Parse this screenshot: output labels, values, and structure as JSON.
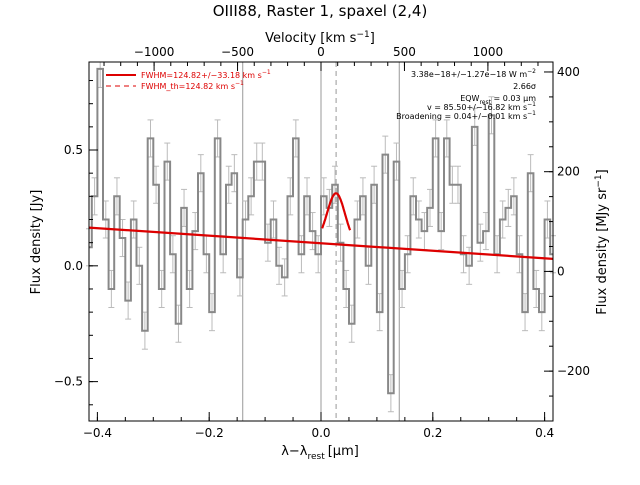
{
  "chart_data": {
    "type": "line",
    "title": "OIII88, Raster 1, spaxel (2,4)",
    "xlabel": "λ−λ",
    "xlabel_sub": "rest",
    "xlabel_unit": "[μm]",
    "ylabel": "Flux density [Jy]",
    "ylabel_right": "Flux density [MJy sr",
    "ylabel_right_sup": "−1",
    "ylabel_right_close": "]",
    "top_xlabel": "Velocity [km s",
    "top_xlabel_sup": "−1",
    "top_xlabel_close": "]",
    "xlim": [
      -0.415,
      0.415
    ],
    "ylim": [
      -0.67,
      0.88
    ],
    "top_xlim": [
      -1390,
      1390
    ],
    "right_ylim": [
      -300,
      420
    ],
    "x_ticks": [
      -0.4,
      -0.2,
      0.0,
      0.2,
      0.4
    ],
    "x_tick_labels": [
      "−0.4",
      "−0.2",
      "0.0",
      "0.2",
      "0.4"
    ],
    "y_ticks": [
      -0.5,
      0.0,
      0.5
    ],
    "y_tick_labels": [
      "−0.5",
      "0.0",
      "0.5"
    ],
    "top_ticks": [
      -1000,
      -500,
      0,
      500,
      1000
    ],
    "top_tick_labels": [
      "−1000",
      "−500",
      "0",
      "500",
      "1000"
    ],
    "right_ticks": [
      -200,
      0,
      200,
      400
    ],
    "right_tick_labels": [
      "−200",
      "0",
      "200",
      "400"
    ],
    "vlines_solid": [
      -0.14,
      0.0,
      0.14
    ],
    "vline_dashed": 0.027,
    "grid": false,
    "legend_position": "top-left",
    "series": [
      {
        "name": "spectrum",
        "style": "step",
        "color": "#888888",
        "x": [
          -0.415,
          -0.405,
          -0.395,
          -0.385,
          -0.375,
          -0.365,
          -0.355,
          -0.345,
          -0.335,
          -0.325,
          -0.315,
          -0.305,
          -0.295,
          -0.285,
          -0.275,
          -0.265,
          -0.255,
          -0.245,
          -0.235,
          -0.225,
          -0.215,
          -0.205,
          -0.195,
          -0.185,
          -0.175,
          -0.165,
          -0.155,
          -0.145,
          -0.135,
          -0.125,
          -0.115,
          -0.105,
          -0.095,
          -0.085,
          -0.075,
          -0.065,
          -0.055,
          -0.045,
          -0.035,
          -0.025,
          -0.015,
          -0.005,
          0.005,
          0.015,
          0.025,
          0.035,
          0.045,
          0.055,
          0.065,
          0.075,
          0.085,
          0.095,
          0.105,
          0.115,
          0.125,
          0.135,
          0.145,
          0.155,
          0.165,
          0.175,
          0.185,
          0.195,
          0.205,
          0.215,
          0.225,
          0.235,
          0.245,
          0.255,
          0.265,
          0.275,
          0.285,
          0.295,
          0.305,
          0.315,
          0.325,
          0.335,
          0.345,
          0.355,
          0.365,
          0.375,
          0.385,
          0.395,
          0.405,
          0.415
        ],
        "y": [
          0.08,
          0.3,
          0.85,
          0.2,
          -0.1,
          0.3,
          0.12,
          -0.15,
          0.2,
          0.0,
          -0.28,
          0.55,
          0.35,
          -0.1,
          0.45,
          0.05,
          -0.25,
          0.25,
          -0.1,
          0.15,
          0.4,
          0.05,
          -0.2,
          0.55,
          0.05,
          0.35,
          0.4,
          -0.05,
          0.2,
          0.3,
          0.45,
          0.45,
          0.1,
          0.2,
          0.0,
          -0.05,
          0.3,
          0.55,
          0.05,
          0.3,
          0.15,
          0.05,
          0.3,
          0.25,
          0.35,
          0.1,
          -0.1,
          -0.25,
          0.2,
          0.3,
          0.0,
          0.35,
          -0.2,
          0.48,
          -0.55,
          0.45,
          -0.1,
          0.05,
          0.3,
          0.2,
          0.15,
          0.25,
          0.55,
          0.15,
          0.55,
          0.35,
          0.35,
          0.05,
          0.0,
          0.6,
          0.1,
          0.15,
          0.65,
          0.05,
          0.2,
          0.25,
          0.3,
          0.05,
          -0.2,
          0.4,
          -0.1,
          -0.2,
          0.2,
          0.05
        ],
        "errors": [
          0.08,
          0.08,
          0.08,
          0.08,
          0.08,
          0.08,
          0.08,
          0.08,
          0.08,
          0.08,
          0.08,
          0.08,
          0.08,
          0.08,
          0.08,
          0.08,
          0.08,
          0.08,
          0.08,
          0.08,
          0.08,
          0.08,
          0.08,
          0.08,
          0.08,
          0.08,
          0.08,
          0.08,
          0.08,
          0.08,
          0.08,
          0.08,
          0.08,
          0.08,
          0.08,
          0.08,
          0.08,
          0.08,
          0.08,
          0.08,
          0.08,
          0.08,
          0.08,
          0.08,
          0.08,
          0.08,
          0.08,
          0.08,
          0.08,
          0.08,
          0.08,
          0.08,
          0.08,
          0.08,
          0.08,
          0.08,
          0.08,
          0.08,
          0.08,
          0.08,
          0.08,
          0.08,
          0.08,
          0.08,
          0.08,
          0.08,
          0.08,
          0.08,
          0.08,
          0.08,
          0.08,
          0.08,
          0.08,
          0.08,
          0.08,
          0.08,
          0.08,
          0.08,
          0.08,
          0.08,
          0.08,
          0.08,
          0.08,
          0.08
        ]
      },
      {
        "name": "FWHM=124.82+/−33.18 km s",
        "name_sup": "−1",
        "style": "fit",
        "color": "#dd0000",
        "continuum": [
          0.165,
          0.03
        ],
        "gauss_center": 0.027,
        "gauss_amp": 0.22,
        "gauss_sigma": 0.016
      },
      {
        "name": "FWHM_th=124.82 km s",
        "name_sup": "−1",
        "style": "dashed",
        "color": "#dd0000"
      }
    ],
    "annotations": [
      {
        "text": "3.38e−18+/−1.27e−18 W m",
        "sup": "−2"
      },
      {
        "text": "2.66σ"
      },
      {
        "text": "EQW",
        "sub": "rest",
        "tail": " = 0.03 μm"
      },
      {
        "text": "v = 85.50+/−16.82 km s",
        "sup": "−1"
      },
      {
        "text": "Broadening = 0.04+/−0.01 km s",
        "sup": "−1"
      }
    ]
  }
}
